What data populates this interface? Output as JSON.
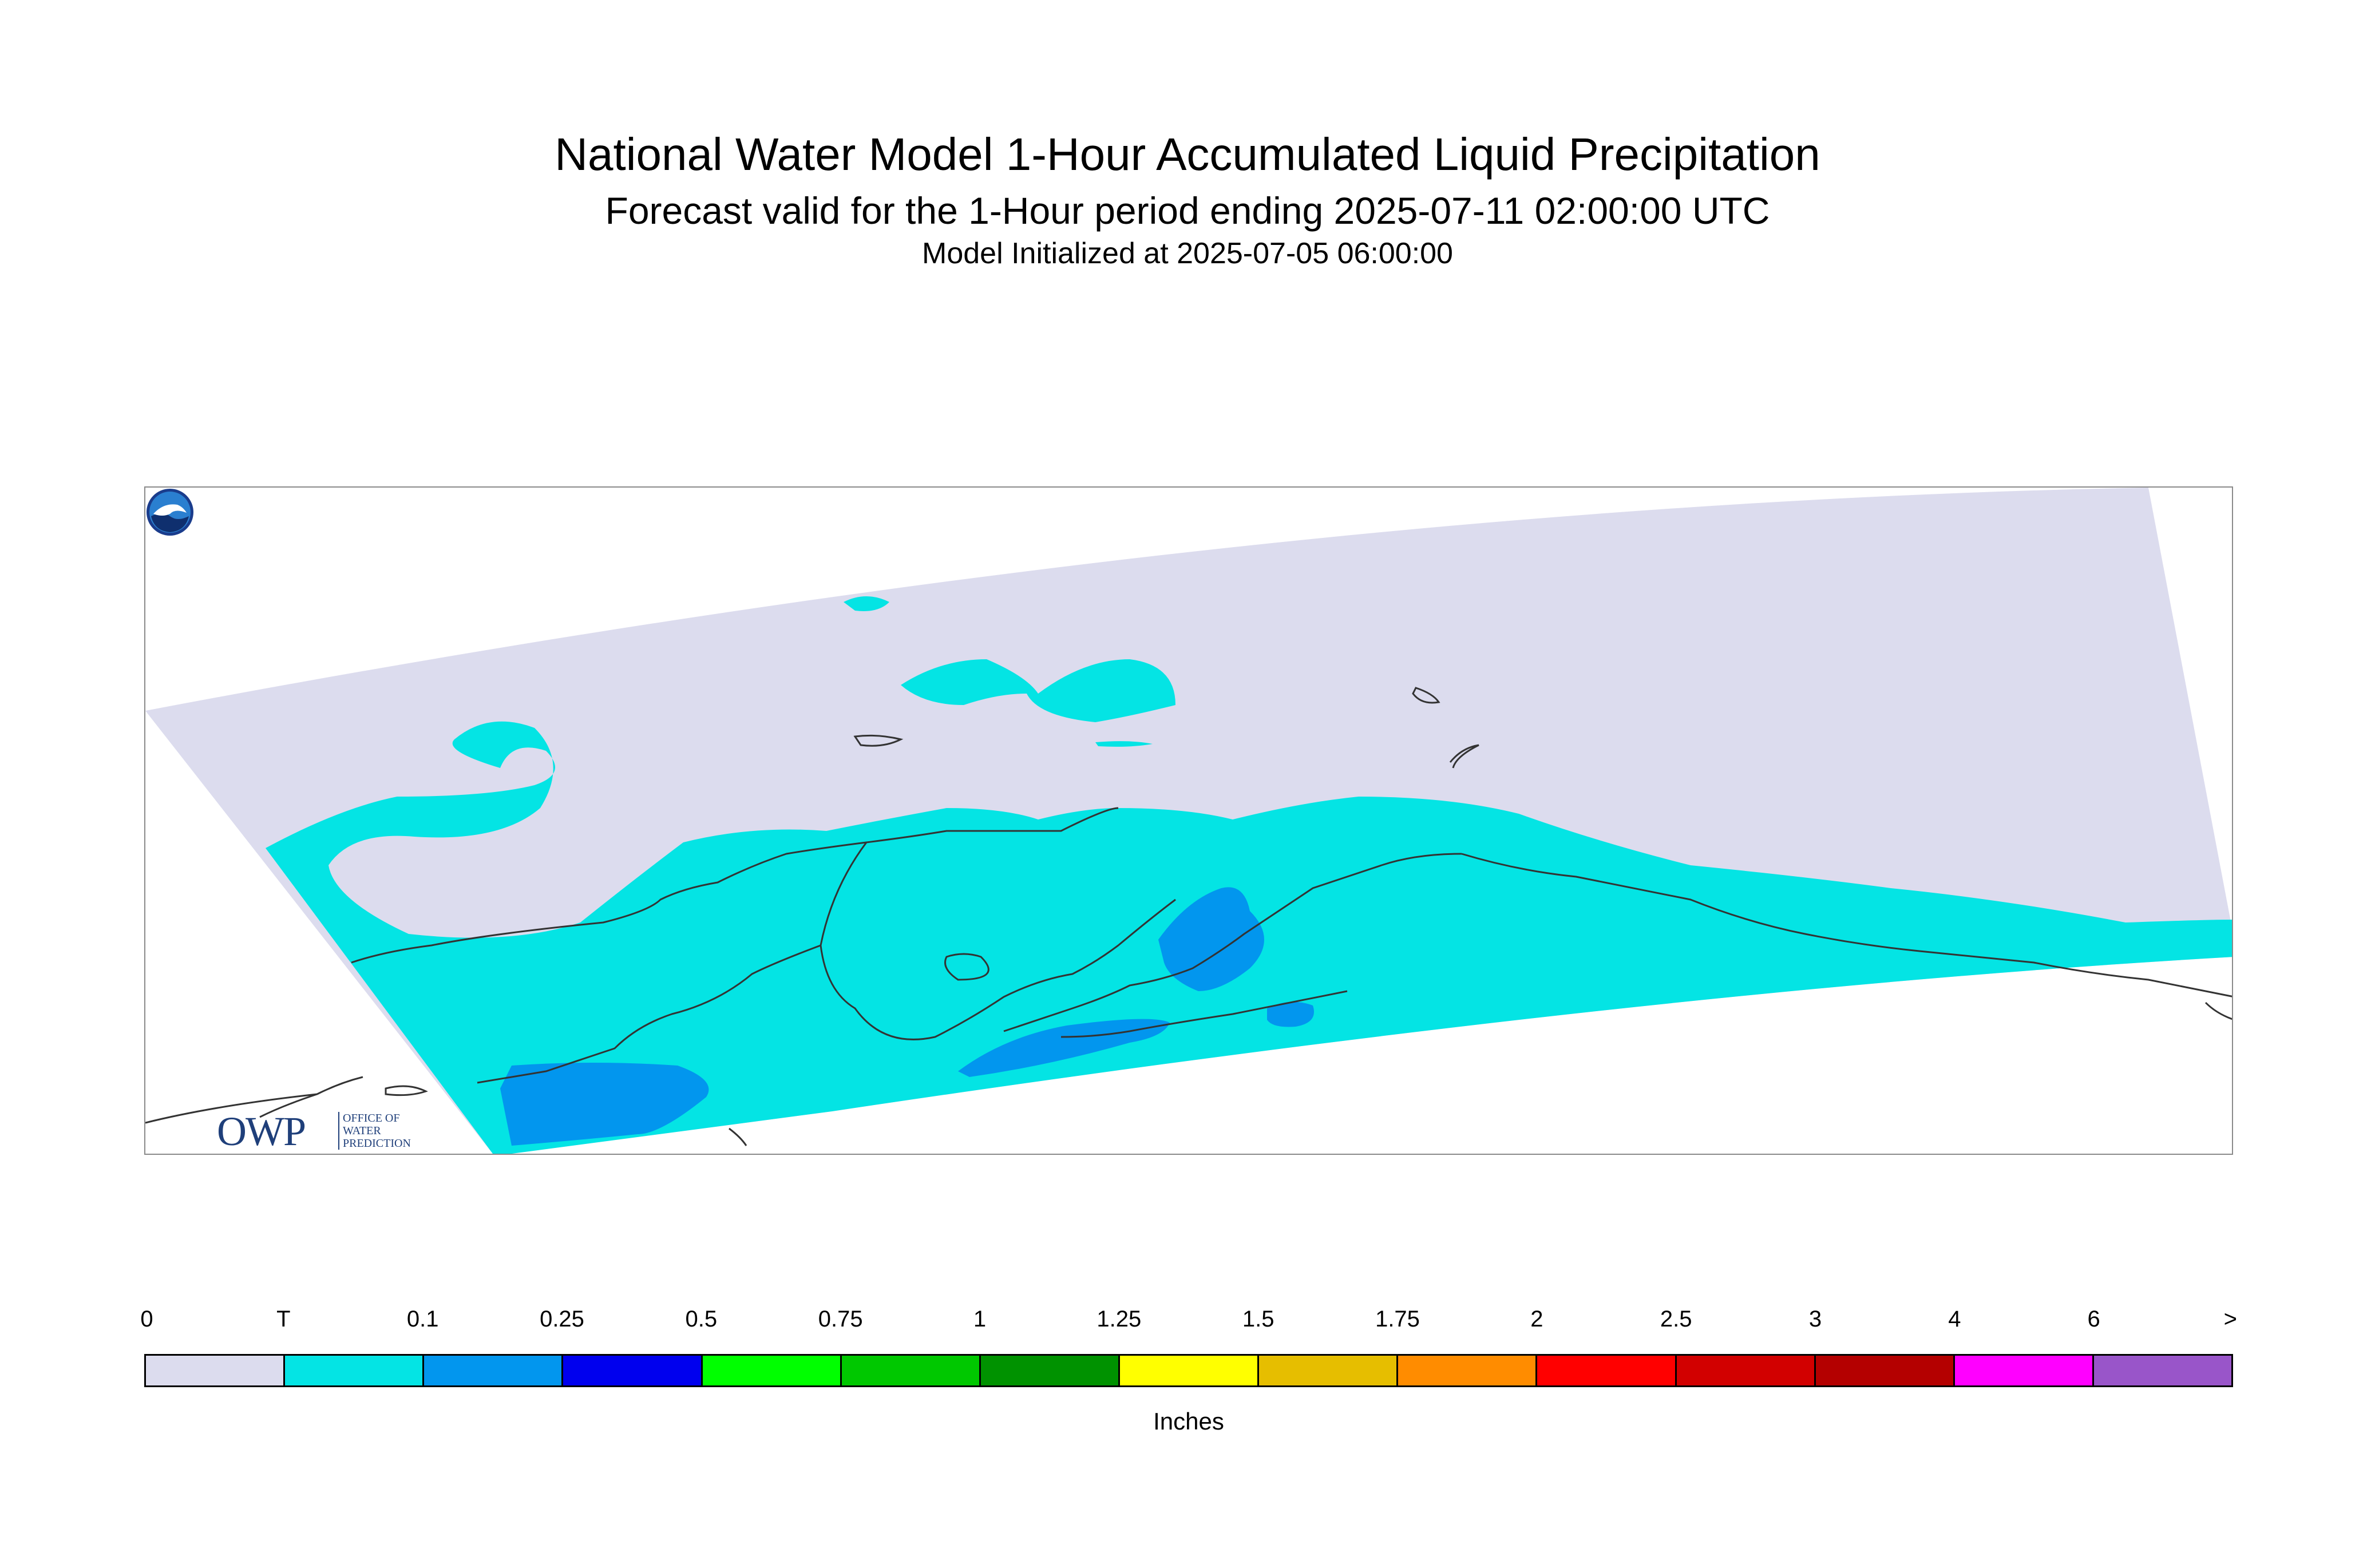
{
  "header": {
    "title": "National Water Model 1-Hour Accumulated Liquid Precipitation",
    "subtitle": "Forecast valid for the 1-Hour period ending 2025-07-11 02:00:00 UTC",
    "init": "Model Initialized at 2025-07-05 06:00:00"
  },
  "map": {
    "region_colors": {
      "zero": "#dcdcee",
      "trace": "#04e4e4",
      "tenth": "#0296ee"
    },
    "owp_logo": {
      "wordmark": "OWP",
      "line1": "OFFICE OF",
      "line2": "WATER",
      "line3": "PREDICTION"
    },
    "noaa_logo": "noaa-logo-icon"
  },
  "legend": {
    "units": "Inches",
    "tick_labels": [
      "0",
      "T",
      "0.1",
      "0.25",
      "0.5",
      "0.75",
      "1",
      "1.25",
      "1.5",
      "1.75",
      "2",
      "2.5",
      "3",
      "4",
      "6",
      ">"
    ],
    "colors": [
      "#dcdcee",
      "#04e4e4",
      "#0296ee",
      "#0000ee",
      "#00ff00",
      "#00c800",
      "#009200",
      "#ffff00",
      "#e6be00",
      "#ff8c00",
      "#ff0000",
      "#d20000",
      "#b40000",
      "#ff00ff",
      "#9955c9"
    ]
  }
}
